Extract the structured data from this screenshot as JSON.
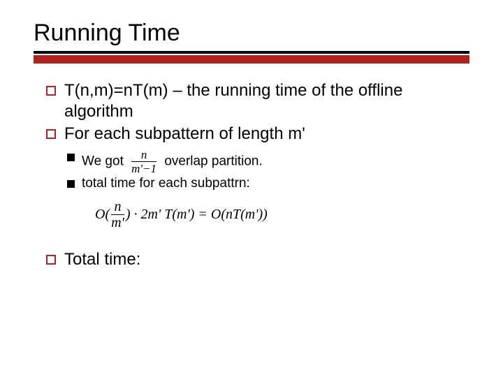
{
  "title": "Running Time",
  "bullets": {
    "b1": "T(n,m)=nT(m) – the running time of the offline algorithm",
    "b2": "For each subpattern of length m'",
    "b3": "Total time:"
  },
  "subs": {
    "s1_prefix": "We got",
    "s1_suffix": "overlap partition.",
    "s2": "total time for each subpattrn:"
  },
  "formula": {
    "frac_num": "n",
    "frac_den": "m'−1",
    "block_left_open": "O(",
    "block_frac_num": "n",
    "block_frac_den": "m'",
    "block_mid": ") · 2m' T(m') = O(nT(m'))"
  },
  "colors": {
    "accent": "#b22222",
    "text": "#000000",
    "background": "#ffffff"
  }
}
